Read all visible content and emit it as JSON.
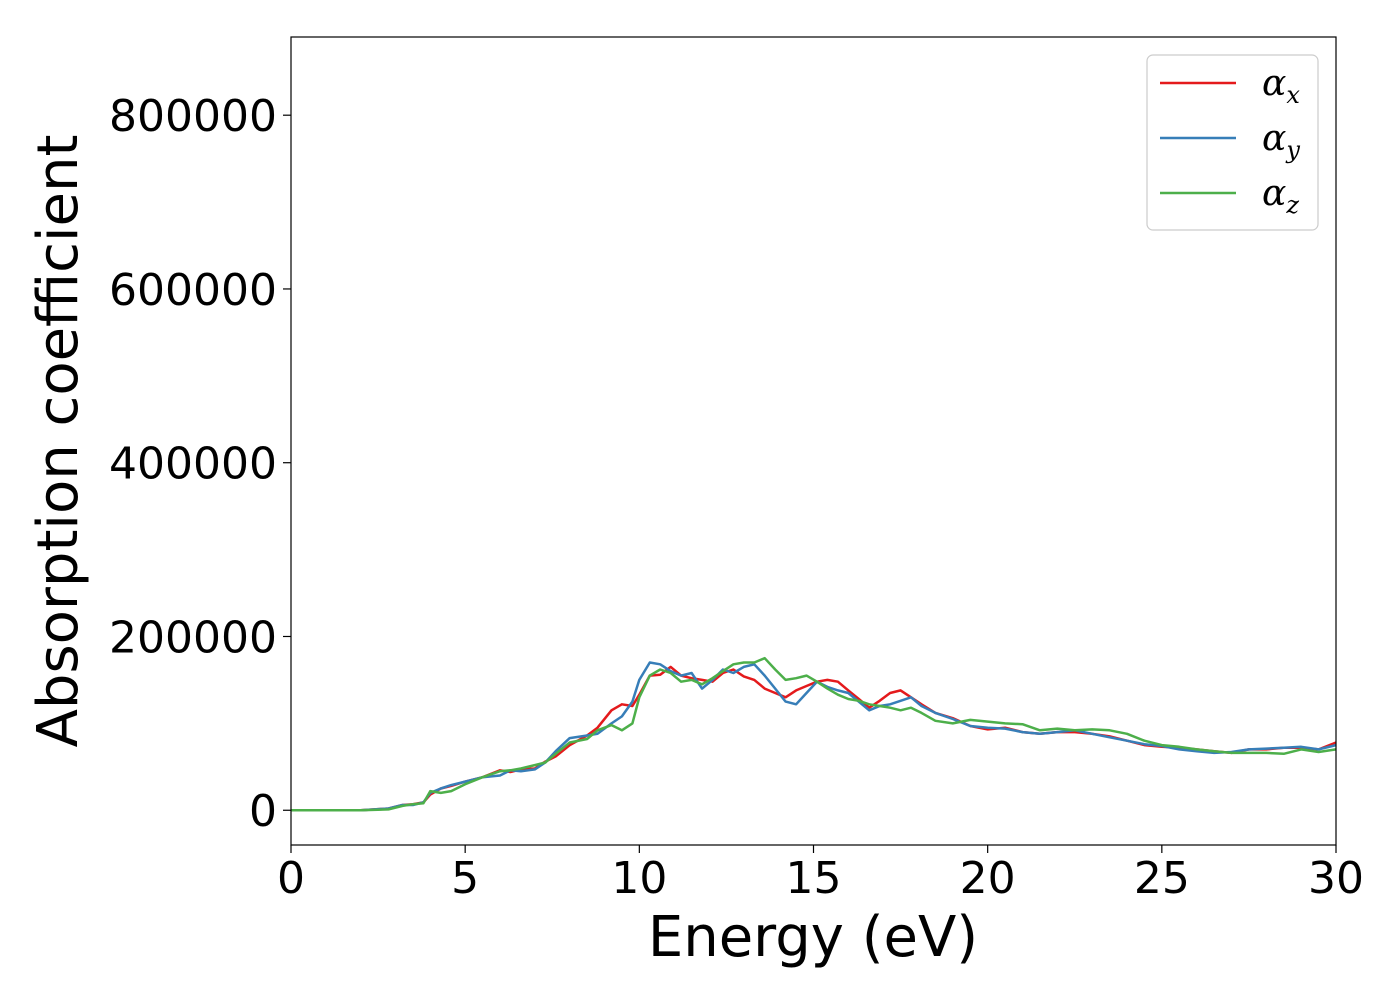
{
  "chart_data": {
    "type": "line",
    "title": "",
    "xlabel": "Energy (eV)",
    "ylabel": "Absorption coefficient",
    "xlim": [
      0,
      30
    ],
    "ylim": [
      -40000,
      890000
    ],
    "xticks": [
      "0",
      "5",
      "10",
      "15",
      "20",
      "25",
      "30"
    ],
    "yticks": [
      "0",
      "200000",
      "400000",
      "600000",
      "800000"
    ],
    "grid": false,
    "legend_position": "top-right",
    "series": [
      {
        "name": "α",
        "subscript": "x",
        "color": "#e41a1c",
        "x": [
          0,
          1,
          2,
          2.8,
          3.2,
          3.5,
          3.8,
          4.0,
          4.3,
          4.6,
          5.0,
          5.5,
          6.0,
          6.3,
          6.6,
          7.0,
          7.3,
          7.6,
          8.0,
          8.5,
          8.8,
          9.2,
          9.5,
          9.8,
          10.0,
          10.3,
          10.6,
          10.9,
          11.2,
          11.5,
          11.8,
          12.1,
          12.4,
          12.7,
          13.0,
          13.3,
          13.6,
          13.9,
          14.2,
          14.5,
          14.8,
          15.1,
          15.4,
          15.7,
          16.0,
          16.3,
          16.6,
          16.9,
          17.2,
          17.5,
          17.8,
          18.1,
          18.5,
          19.0,
          19.5,
          20.0,
          20.5,
          21.0,
          21.5,
          22.0,
          22.5,
          23.0,
          23.5,
          24.0,
          24.5,
          25.0,
          25.5,
          26.0,
          26.5,
          27.0,
          27.5,
          28.0,
          28.5,
          29.0,
          29.5,
          30.0
        ],
        "y": [
          0,
          0,
          0,
          2000,
          6000,
          7000,
          9000,
          18000,
          25000,
          28000,
          33000,
          38000,
          46000,
          44000,
          47000,
          48000,
          56000,
          62000,
          75000,
          86000,
          95000,
          115000,
          122000,
          120000,
          133000,
          155000,
          156000,
          165000,
          155000,
          152000,
          150000,
          148000,
          158000,
          162000,
          154000,
          150000,
          140000,
          135000,
          130000,
          138000,
          143000,
          148000,
          150000,
          148000,
          138000,
          128000,
          118000,
          126000,
          135000,
          138000,
          130000,
          122000,
          112000,
          106000,
          97000,
          93000,
          95000,
          90000,
          88000,
          90000,
          90000,
          88000,
          85000,
          80000,
          75000,
          73000,
          72000,
          70000,
          68000,
          66000,
          70000,
          70000,
          72000,
          72000,
          70000,
          78000
        ]
      },
      {
        "name": "α",
        "subscript": "y",
        "color": "#377eb8",
        "x": [
          0,
          1,
          2,
          2.8,
          3.2,
          3.5,
          3.8,
          4.0,
          4.3,
          4.6,
          5.0,
          5.5,
          6.0,
          6.3,
          6.6,
          7.0,
          7.3,
          7.6,
          8.0,
          8.5,
          8.8,
          9.2,
          9.5,
          9.8,
          10.0,
          10.3,
          10.6,
          10.9,
          11.2,
          11.5,
          11.8,
          12.1,
          12.4,
          12.7,
          13.0,
          13.3,
          13.6,
          13.9,
          14.2,
          14.5,
          14.8,
          15.1,
          15.4,
          15.7,
          16.0,
          16.3,
          16.6,
          16.9,
          17.2,
          17.5,
          17.8,
          18.1,
          18.5,
          19.0,
          19.5,
          20.0,
          20.5,
          21.0,
          21.5,
          22.0,
          22.5,
          23.0,
          23.5,
          24.0,
          24.5,
          25.0,
          25.5,
          26.0,
          26.5,
          27.0,
          27.5,
          28.0,
          28.5,
          29.0,
          29.5,
          30.0
        ],
        "y": [
          0,
          0,
          0,
          2000,
          6000,
          6000,
          9000,
          20000,
          25000,
          29000,
          33000,
          38000,
          40000,
          46000,
          45000,
          47000,
          55000,
          68000,
          83000,
          86000,
          88000,
          100000,
          108000,
          125000,
          150000,
          170000,
          168000,
          160000,
          155000,
          158000,
          140000,
          150000,
          162000,
          158000,
          165000,
          168000,
          155000,
          140000,
          125000,
          122000,
          135000,
          148000,
          142000,
          138000,
          135000,
          125000,
          115000,
          120000,
          122000,
          126000,
          130000,
          120000,
          112000,
          105000,
          97000,
          95000,
          94000,
          90000,
          88000,
          90000,
          92000,
          88000,
          84000,
          80000,
          76000,
          74000,
          70000,
          68000,
          66000,
          67000,
          70000,
          71000,
          72000,
          73000,
          70000,
          75000
        ]
      },
      {
        "name": "α",
        "subscript": "z",
        "color": "#4daf4a",
        "x": [
          0,
          1,
          2,
          2.8,
          3.2,
          3.5,
          3.8,
          4.0,
          4.3,
          4.6,
          5.0,
          5.5,
          6.0,
          6.3,
          6.6,
          7.0,
          7.3,
          7.6,
          8.0,
          8.5,
          8.8,
          9.2,
          9.5,
          9.8,
          10.0,
          10.3,
          10.6,
          10.9,
          11.2,
          11.5,
          11.8,
          12.1,
          12.4,
          12.7,
          13.0,
          13.3,
          13.6,
          13.9,
          14.2,
          14.5,
          14.8,
          15.1,
          15.4,
          15.7,
          16.0,
          16.3,
          16.6,
          16.9,
          17.2,
          17.5,
          17.8,
          18.1,
          18.5,
          19.0,
          19.5,
          20.0,
          20.5,
          21.0,
          21.5,
          22.0,
          22.5,
          23.0,
          23.5,
          24.0,
          24.5,
          25.0,
          25.5,
          26.0,
          26.5,
          27.0,
          27.5,
          28.0,
          28.5,
          29.0,
          29.5,
          30.0
        ],
        "y": [
          0,
          0,
          0,
          1000,
          5000,
          7000,
          8000,
          22000,
          20000,
          22000,
          30000,
          38000,
          45000,
          46000,
          48000,
          52000,
          55000,
          65000,
          78000,
          82000,
          92000,
          98000,
          92000,
          100000,
          130000,
          155000,
          162000,
          158000,
          148000,
          150000,
          145000,
          152000,
          160000,
          168000,
          170000,
          170000,
          175000,
          162000,
          150000,
          152000,
          155000,
          148000,
          140000,
          133000,
          128000,
          126000,
          122000,
          120000,
          118000,
          115000,
          118000,
          112000,
          103000,
          100000,
          104000,
          102000,
          100000,
          99000,
          92000,
          94000,
          92000,
          93000,
          92000,
          88000,
          80000,
          75000,
          73000,
          70000,
          68000,
          66000,
          66000,
          66000,
          65000,
          70000,
          67000,
          70000
        ]
      }
    ]
  }
}
